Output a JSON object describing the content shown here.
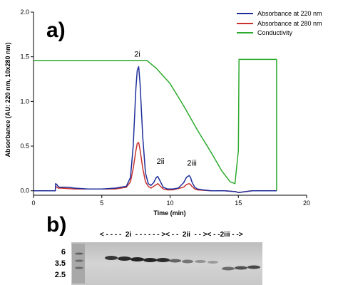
{
  "panel_a_label": "a)",
  "panel_b_label": "b)",
  "chart_data": {
    "type": "line",
    "title": "",
    "xlabel": "Time (min)",
    "ylabel": "Absorbance (AU: 220 nm, 10x280 nm)",
    "xlim": [
      0,
      20
    ],
    "ylim": [
      -0.05,
      2.0
    ],
    "xticks": [
      "0",
      "5",
      "10",
      "15",
      "20"
    ],
    "yticks": [
      "0.0",
      "0.5",
      "1.0",
      "1.5",
      "2.0"
    ],
    "grid": false,
    "legend_position": "top-right",
    "series": [
      {
        "name": "Absorbance at 220 nm",
        "color": "#1f2f9a",
        "x": [
          0,
          1.6,
          1.62,
          1.7,
          1.8,
          1.9,
          2.0,
          2.5,
          3.0,
          4.0,
          5.0,
          6.0,
          6.8,
          7.1,
          7.3,
          7.5,
          7.6,
          7.7,
          7.8,
          8.0,
          8.2,
          8.4,
          8.6,
          8.8,
          9.0,
          9.1,
          9.3,
          9.5,
          9.8,
          10.2,
          10.6,
          11.0,
          11.2,
          11.4,
          11.5,
          11.6,
          11.8,
          12.0,
          12.4,
          13.0,
          14.0,
          14.8,
          15.0,
          15.5,
          16.0,
          17.0,
          17.8
        ],
        "y": [
          0.0,
          0.0,
          0.08,
          0.07,
          0.05,
          0.04,
          0.04,
          0.04,
          0.03,
          0.02,
          0.02,
          0.03,
          0.05,
          0.15,
          0.5,
          1.15,
          1.35,
          1.39,
          1.2,
          0.6,
          0.2,
          0.08,
          0.06,
          0.09,
          0.15,
          0.16,
          0.1,
          0.04,
          0.02,
          0.02,
          0.03,
          0.09,
          0.15,
          0.17,
          0.15,
          0.1,
          0.04,
          0.02,
          0.01,
          0.0,
          0.0,
          -0.01,
          -0.02,
          -0.01,
          0.0,
          0.0,
          0.0
        ]
      },
      {
        "name": "Absorbance at 280 nm",
        "color": "#c8322e",
        "x": [
          0,
          1.6,
          1.62,
          1.8,
          2.0,
          3.0,
          4.0,
          5.0,
          6.0,
          6.8,
          7.1,
          7.3,
          7.5,
          7.6,
          7.7,
          7.8,
          8.0,
          8.2,
          8.4,
          8.6,
          8.8,
          9.0,
          9.1,
          9.3,
          9.5,
          9.8,
          10.2,
          11.0,
          11.2,
          11.4,
          11.5,
          11.6,
          11.8,
          12.0,
          13.0,
          14.0,
          14.8,
          15.0,
          15.5,
          16.0,
          17.0,
          17.8
        ],
        "y": [
          0.0,
          0.0,
          0.05,
          0.03,
          0.03,
          0.02,
          0.02,
          0.02,
          0.02,
          0.04,
          0.1,
          0.25,
          0.45,
          0.53,
          0.54,
          0.46,
          0.25,
          0.1,
          0.05,
          0.03,
          0.05,
          0.07,
          0.08,
          0.05,
          0.02,
          0.01,
          0.01,
          0.04,
          0.07,
          0.08,
          0.07,
          0.05,
          0.02,
          0.01,
          0.0,
          0.0,
          -0.01,
          -0.02,
          -0.01,
          0.0,
          0.0,
          0.0
        ]
      },
      {
        "name": "Conductivity",
        "color": "#2eaa2e",
        "x": [
          0,
          8.3,
          9.0,
          10.0,
          11.0,
          12.0,
          13.0,
          13.8,
          14.4,
          14.75,
          15.0,
          15.05,
          17.8,
          17.8
        ],
        "y": [
          1.46,
          1.46,
          1.37,
          1.2,
          0.95,
          0.68,
          0.43,
          0.22,
          0.1,
          0.08,
          0.45,
          1.47,
          1.47,
          0.0
        ]
      }
    ],
    "annotations": [
      {
        "text": "2i",
        "x": 7.6,
        "y": 1.5
      },
      {
        "text": "2ii",
        "x": 9.3,
        "y": 0.3
      },
      {
        "text": "2iii",
        "x": 11.6,
        "y": 0.28
      }
    ]
  },
  "gel": {
    "mw_markers": [
      "6",
      "3.5",
      "2.5"
    ],
    "lane_labels": "< - - - -  2i  - - - - - - >< - -  2ii  - - >< - -2iii - ->"
  }
}
